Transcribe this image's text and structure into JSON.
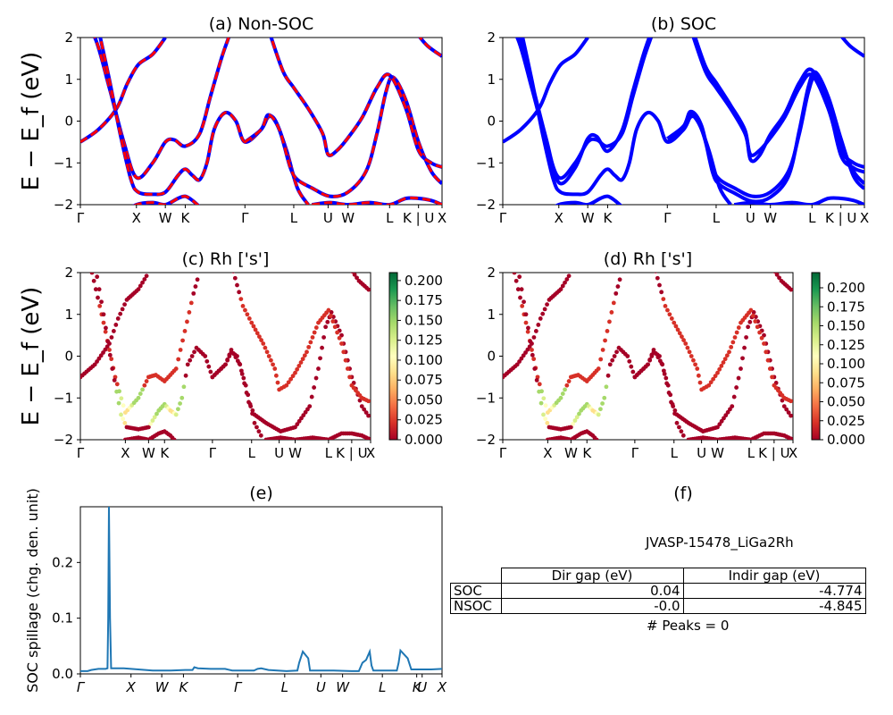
{
  "chart_data": [
    {
      "type": "line",
      "title": "(a) Non-SOC",
      "ylabel": "E − E_f (eV)",
      "ylim": [
        -2,
        2
      ],
      "yticks": [
        "2",
        "1",
        "0",
        "−1",
        "−2"
      ],
      "xticks": [
        {
          "label": "Γ",
          "x": 0
        },
        {
          "label": "X",
          "x": 0.155
        },
        {
          "label": "W",
          "x": 0.235
        },
        {
          "label": "K",
          "x": 0.29
        },
        {
          "label": "Γ",
          "x": 0.455
        },
        {
          "label": "L",
          "x": 0.59
        },
        {
          "label": "U",
          "x": 0.685
        },
        {
          "label": "W",
          "x": 0.74
        },
        {
          "label": "L",
          "x": 0.855
        },
        {
          "label": "K | U",
          "x": 0.935
        },
        {
          "label": "X",
          "x": 1.0
        }
      ],
      "series": [
        {
          "color": "#0000ff",
          "style": "solid",
          "bands": [
            [
              [
                0,
                -0.5
              ],
              [
                0.05,
                -0.2
              ],
              [
                0.1,
                0.3
              ],
              [
                0.13,
                0.9
              ],
              [
                0.16,
                1.35
              ],
              [
                0.2,
                1.6
              ],
              [
                0.235,
                2.0
              ]
            ],
            [
              [
                0,
                2.3
              ],
              [
                0.04,
                2.0
              ],
              [
                0.08,
                0.8
              ],
              [
                0.12,
                -0.5
              ],
              [
                0.155,
                -1.35
              ],
              [
                0.2,
                -1.0
              ],
              [
                0.235,
                -0.5
              ],
              [
                0.26,
                -0.45
              ],
              [
                0.29,
                -0.6
              ],
              [
                0.33,
                -0.3
              ],
              [
                0.36,
                0.6
              ],
              [
                0.39,
                1.5
              ],
              [
                0.41,
                2.0
              ]
            ],
            [
              [
                0.05,
                2.2
              ],
              [
                0.08,
                1.0
              ],
              [
                0.11,
                -0.3
              ],
              [
                0.14,
                -1.4
              ],
              [
                0.16,
                -1.7
              ],
              [
                0.2,
                -1.75
              ],
              [
                0.235,
                -1.7
              ],
              [
                0.27,
                -1.3
              ],
              [
                0.29,
                -1.15
              ],
              [
                0.31,
                -1.3
              ],
              [
                0.33,
                -1.4
              ],
              [
                0.35,
                -1.0
              ],
              [
                0.37,
                -0.2
              ],
              [
                0.4,
                0.2
              ],
              [
                0.43,
                0.0
              ],
              [
                0.455,
                -0.5
              ],
              [
                0.5,
                -0.2
              ],
              [
                0.52,
                0.1
              ],
              [
                0.54,
                0.0
              ],
              [
                0.57,
                -0.7
              ],
              [
                0.6,
                -1.6
              ],
              [
                0.63,
                -2.0
              ]
            ],
            [
              [
                0.12,
                -2.2
              ],
              [
                0.155,
                -2.0
              ],
              [
                0.2,
                -1.95
              ],
              [
                0.235,
                -2.0
              ],
              [
                0.27,
                -1.85
              ],
              [
                0.29,
                -1.8
              ],
              [
                0.31,
                -1.9
              ],
              [
                0.33,
                -2.05
              ]
            ],
            [
              [
                0.455,
                -0.5
              ],
              [
                0.5,
                -0.2
              ],
              [
                0.52,
                0.15
              ],
              [
                0.55,
                -0.2
              ],
              [
                0.58,
                -1.1
              ],
              [
                0.6,
                -1.4
              ],
              [
                0.64,
                -1.6
              ],
              [
                0.69,
                -1.8
              ],
              [
                0.74,
                -1.7
              ],
              [
                0.79,
                -1.2
              ],
              [
                0.82,
                -0.3
              ],
              [
                0.845,
                0.7
              ],
              [
                0.865,
                1.05
              ],
              [
                0.9,
                0.5
              ],
              [
                0.935,
                -0.5
              ],
              [
                0.97,
                -1.2
              ],
              [
                1.0,
                -1.5
              ]
            ],
            [
              [
                0.52,
                2.2
              ],
              [
                0.56,
                1.2
              ],
              [
                0.59,
                0.8
              ],
              [
                0.63,
                0.3
              ],
              [
                0.67,
                -0.3
              ],
              [
                0.685,
                -0.8
              ],
              [
                0.71,
                -0.7
              ],
              [
                0.74,
                -0.4
              ],
              [
                0.78,
                0.1
              ],
              [
                0.82,
                0.8
              ],
              [
                0.855,
                1.1
              ],
              [
                0.9,
                0.3
              ],
              [
                0.935,
                -0.7
              ],
              [
                0.97,
                -1.0
              ],
              [
                1.0,
                -1.1
              ]
            ],
            [
              [
                0.64,
                -2.0
              ],
              [
                0.69,
                -1.95
              ],
              [
                0.74,
                -2.0
              ],
              [
                0.8,
                -1.95
              ],
              [
                0.855,
                -2.0
              ],
              [
                0.9,
                -1.85
              ],
              [
                0.935,
                -1.85
              ],
              [
                0.97,
                -1.9
              ],
              [
                1.0,
                -2.0
              ]
            ],
            [
              [
                0.93,
                2.1
              ],
              [
                0.96,
                1.8
              ],
              [
                1.0,
                1.55
              ]
            ]
          ]
        },
        {
          "color": "#ff0000",
          "style": "dashed",
          "bands": "same"
        }
      ]
    },
    {
      "type": "line",
      "title": "(b) SOC",
      "ylim": [
        -2,
        2
      ],
      "yticks": [
        "2",
        "1",
        "0",
        "−1",
        "−2"
      ],
      "xticks": "same as (a)",
      "series": [
        {
          "color": "#0000ff",
          "style": "solid",
          "bands": "split by spin-orbit coupling"
        }
      ]
    },
    {
      "type": "scatter",
      "title": "(c)  Rh ['s']",
      "ylabel": "E − E_f (eV)",
      "ylim": [
        -2,
        2
      ],
      "yticks": [
        "2",
        "1",
        "0",
        "−1",
        "−2"
      ],
      "xticks": [
        {
          "label": "Γ",
          "x": 0
        },
        {
          "label": "X",
          "x": 0.155
        },
        {
          "label": "W",
          "x": 0.235
        },
        {
          "label": "K",
          "x": 0.29
        },
        {
          "label": "Γ",
          "x": 0.455
        },
        {
          "label": "L",
          "x": 0.59
        },
        {
          "label": "U",
          "x": 0.685
        },
        {
          "label": "W",
          "x": 0.74
        },
        {
          "label": "L",
          "x": 0.855
        },
        {
          "label": "K | U",
          "x": 0.935
        },
        {
          "label": "X",
          "x": 1.0
        }
      ],
      "colorbar": {
        "min": 0.0,
        "max": 0.21,
        "ticks": [
          "0.000",
          "0.025",
          "0.050",
          "0.075",
          "0.100",
          "0.125",
          "0.150",
          "0.175",
          "0.200"
        ],
        "colormap": "RdYlGn"
      }
    },
    {
      "type": "scatter",
      "title": "(d) Rh ['s']",
      "ylim": [
        -2,
        2
      ],
      "yticks": [
        "2",
        "1",
        "0",
        "−1",
        "−2"
      ],
      "xticks": "same as (c)",
      "colorbar": {
        "min": 0.0,
        "max": 0.22,
        "ticks": [
          "0.000",
          "0.025",
          "0.050",
          "0.075",
          "0.100",
          "0.125",
          "0.150",
          "0.175",
          "0.200"
        ],
        "colormap": "RdYlGn"
      }
    },
    {
      "type": "line",
      "title": "(e)",
      "ylabel": "SOC spillage (chg. den. unit)",
      "ylim": [
        0,
        0.3
      ],
      "yticks": [
        "0.0",
        "0.1",
        "0.2"
      ],
      "xticks": [
        {
          "label": "Γ",
          "x": 0
        },
        {
          "label": "X",
          "x": 0.14
        },
        {
          "label": "W",
          "x": 0.225
        },
        {
          "label": "K",
          "x": 0.285
        },
        {
          "label": "Γ",
          "x": 0.435
        },
        {
          "label": "L",
          "x": 0.565
        },
        {
          "label": "U",
          "x": 0.665
        },
        {
          "label": "W",
          "x": 0.725
        },
        {
          "label": "L",
          "x": 0.835
        },
        {
          "label": "K",
          "x": 0.93
        },
        {
          "label": "U",
          "x": 0.945
        },
        {
          "label": "X",
          "x": 1.0
        }
      ],
      "series": [
        {
          "color": "#1f77b4",
          "points": [
            [
              0,
              0.005
            ],
            [
              0.02,
              0.005
            ],
            [
              0.03,
              0.007
            ],
            [
              0.05,
              0.009
            ],
            [
              0.07,
              0.009
            ],
            [
              0.075,
              0.01
            ],
            [
              0.077,
              0.1
            ],
            [
              0.079,
              0.3
            ],
            [
              0.082,
              0.1
            ],
            [
              0.085,
              0.01
            ],
            [
              0.12,
              0.01
            ],
            [
              0.16,
              0.008
            ],
            [
              0.2,
              0.006
            ],
            [
              0.25,
              0.006
            ],
            [
              0.29,
              0.007
            ],
            [
              0.31,
              0.007
            ],
            [
              0.315,
              0.012
            ],
            [
              0.325,
              0.01
            ],
            [
              0.36,
              0.009
            ],
            [
              0.4,
              0.009
            ],
            [
              0.42,
              0.006
            ],
            [
              0.48,
              0.006
            ],
            [
              0.49,
              0.009
            ],
            [
              0.5,
              0.01
            ],
            [
              0.52,
              0.007
            ],
            [
              0.57,
              0.005
            ],
            [
              0.6,
              0.006
            ],
            [
              0.605,
              0.02
            ],
            [
              0.615,
              0.04
            ],
            [
              0.63,
              0.028
            ],
            [
              0.635,
              0.006
            ],
            [
              0.7,
              0.006
            ],
            [
              0.75,
              0.005
            ],
            [
              0.77,
              0.005
            ],
            [
              0.78,
              0.02
            ],
            [
              0.79,
              0.025
            ],
            [
              0.8,
              0.04
            ],
            [
              0.805,
              0.015
            ],
            [
              0.81,
              0.006
            ],
            [
              0.84,
              0.006
            ],
            [
              0.875,
              0.006
            ],
            [
              0.88,
              0.02
            ],
            [
              0.885,
              0.042
            ],
            [
              0.895,
              0.035
            ],
            [
              0.905,
              0.028
            ],
            [
              0.915,
              0.008
            ],
            [
              0.93,
              0.008
            ],
            [
              0.97,
              0.008
            ],
            [
              1.0,
              0.009
            ]
          ]
        }
      ]
    },
    {
      "type": "table",
      "title": "(f)",
      "table_title": "JVASP-15478_LiGa2Rh",
      "columns": [
        "Dir gap (eV)",
        "Indir gap (eV)"
      ],
      "rows": [
        {
          "label": "SOC",
          "dir_gap": "0.04",
          "indir_gap": "-4.774"
        },
        {
          "label": "NSOC",
          "dir_gap": "-0.0",
          "indir_gap": "-4.845"
        }
      ],
      "footer": "# Peaks = 0"
    }
  ]
}
